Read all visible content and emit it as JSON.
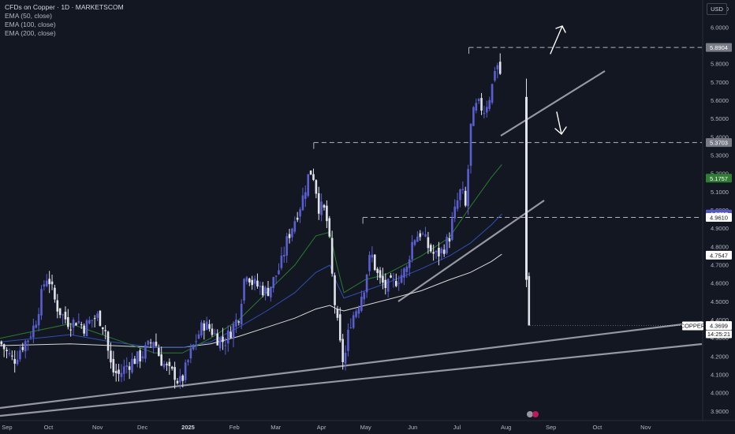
{
  "legend": {
    "title": "CFDs on Copper · 1D · MARKETSCOM",
    "indicators": [
      "EMA (50, close)",
      "EMA (100, close)",
      "EMA (200, close)"
    ]
  },
  "currency": "USD",
  "chart_data": {
    "type": "candlestick",
    "title": "CFDs on Copper · 1D · MARKETSCOM",
    "ylim": [
      3.85,
      6.15
    ],
    "y_ticks": [
      "6.1000",
      "6.0000",
      "5.9000",
      "5.8000",
      "5.7000",
      "5.6000",
      "5.5000",
      "5.4000",
      "5.3000",
      "5.2000",
      "5.1000",
      "5.0000",
      "4.9000",
      "4.8000",
      "4.7000",
      "4.6000",
      "4.5000",
      "4.4000",
      "4.3000",
      "4.2000",
      "4.1000",
      "4.0000",
      "3.9000"
    ],
    "x_labels": [
      {
        "label": "Sep",
        "bold": false,
        "pos": 0.01
      },
      {
        "label": "Oct",
        "bold": false,
        "pos": 0.069
      },
      {
        "label": "Nov",
        "bold": false,
        "pos": 0.139
      },
      {
        "label": "Dec",
        "bold": false,
        "pos": 0.203
      },
      {
        "label": "2025",
        "bold": true,
        "pos": 0.268
      },
      {
        "label": "Feb",
        "bold": false,
        "pos": 0.334
      },
      {
        "label": "Mar",
        "bold": false,
        "pos": 0.393
      },
      {
        "label": "Apr",
        "bold": false,
        "pos": 0.458
      },
      {
        "label": "May",
        "bold": false,
        "pos": 0.521
      },
      {
        "label": "Jun",
        "bold": false,
        "pos": 0.588
      },
      {
        "label": "Jul",
        "bold": false,
        "pos": 0.651
      },
      {
        "label": "Aug",
        "bold": false,
        "pos": 0.721
      },
      {
        "label": "Sep",
        "bold": false,
        "pos": 0.785
      },
      {
        "label": "Oct",
        "bold": false,
        "pos": 0.851
      },
      {
        "label": "Nov",
        "bold": false,
        "pos": 0.92
      }
    ],
    "close_path": [
      [
        0.0,
        4.28
      ],
      [
        0.01,
        4.22
      ],
      [
        0.02,
        4.18
      ],
      [
        0.03,
        4.25
      ],
      [
        0.04,
        4.3
      ],
      [
        0.05,
        4.38
      ],
      [
        0.06,
        4.55
      ],
      [
        0.065,
        4.64
      ],
      [
        0.07,
        4.62
      ],
      [
        0.075,
        4.55
      ],
      [
        0.08,
        4.48
      ],
      [
        0.09,
        4.42
      ],
      [
        0.1,
        4.38
      ],
      [
        0.11,
        4.4
      ],
      [
        0.12,
        4.36
      ],
      [
        0.13,
        4.4
      ],
      [
        0.14,
        4.42
      ],
      [
        0.15,
        4.35
      ],
      [
        0.155,
        4.2
      ],
      [
        0.16,
        4.12
      ],
      [
        0.17,
        4.1
      ],
      [
        0.18,
        4.15
      ],
      [
        0.19,
        4.18
      ],
      [
        0.2,
        4.2
      ],
      [
        0.21,
        4.25
      ],
      [
        0.22,
        4.3
      ],
      [
        0.225,
        4.22
      ],
      [
        0.23,
        4.18
      ],
      [
        0.24,
        4.12
      ],
      [
        0.25,
        4.1
      ],
      [
        0.255,
        4.05
      ],
      [
        0.26,
        4.08
      ],
      [
        0.27,
        4.2
      ],
      [
        0.28,
        4.3
      ],
      [
        0.29,
        4.38
      ],
      [
        0.3,
        4.35
      ],
      [
        0.31,
        4.3
      ],
      [
        0.32,
        4.28
      ],
      [
        0.33,
        4.35
      ],
      [
        0.34,
        4.42
      ],
      [
        0.345,
        4.55
      ],
      [
        0.35,
        4.68
      ],
      [
        0.36,
        4.6
      ],
      [
        0.37,
        4.58
      ],
      [
        0.38,
        4.55
      ],
      [
        0.39,
        4.62
      ],
      [
        0.4,
        4.7
      ],
      [
        0.41,
        4.85
      ],
      [
        0.42,
        4.95
      ],
      [
        0.43,
        5.05
      ],
      [
        0.44,
        5.2
      ],
      [
        0.445,
        5.22
      ],
      [
        0.45,
        5.12
      ],
      [
        0.455,
        5.0
      ],
      [
        0.46,
        5.02
      ],
      [
        0.465,
        4.96
      ],
      [
        0.47,
        4.8
      ],
      [
        0.475,
        4.55
      ],
      [
        0.48,
        4.4
      ],
      [
        0.485,
        4.25
      ],
      [
        0.49,
        4.15
      ],
      [
        0.495,
        4.3
      ],
      [
        0.5,
        4.4
      ],
      [
        0.51,
        4.48
      ],
      [
        0.52,
        4.6
      ],
      [
        0.525,
        4.72
      ],
      [
        0.53,
        4.75
      ],
      [
        0.535,
        4.68
      ],
      [
        0.54,
        4.62
      ],
      [
        0.55,
        4.58
      ],
      [
        0.56,
        4.6
      ],
      [
        0.57,
        4.64
      ],
      [
        0.58,
        4.68
      ],
      [
        0.585,
        4.8
      ],
      [
        0.59,
        4.85
      ],
      [
        0.6,
        4.88
      ],
      [
        0.61,
        4.8
      ],
      [
        0.62,
        4.75
      ],
      [
        0.63,
        4.78
      ],
      [
        0.64,
        4.85
      ],
      [
        0.645,
        4.95
      ],
      [
        0.65,
        5.02
      ],
      [
        0.655,
        5.1
      ],
      [
        0.66,
        5.08
      ],
      [
        0.665,
        4.98
      ],
      [
        0.668,
        5.35
      ],
      [
        0.672,
        5.5
      ],
      [
        0.68,
        5.58
      ],
      [
        0.69,
        5.55
      ],
      [
        0.7,
        5.65
      ],
      [
        0.705,
        5.78
      ],
      [
        0.71,
        5.8
      ],
      [
        0.715,
        5.7
      ]
    ],
    "ema50_path": [
      [
        0.0,
        4.3
      ],
      [
        0.1,
        4.38
      ],
      [
        0.16,
        4.3
      ],
      [
        0.22,
        4.22
      ],
      [
        0.26,
        4.22
      ],
      [
        0.3,
        4.3
      ],
      [
        0.34,
        4.4
      ],
      [
        0.38,
        4.55
      ],
      [
        0.42,
        4.7
      ],
      [
        0.45,
        4.86
      ],
      [
        0.47,
        4.88
      ],
      [
        0.48,
        4.7
      ],
      [
        0.49,
        4.55
      ],
      [
        0.52,
        4.62
      ],
      [
        0.55,
        4.65
      ],
      [
        0.6,
        4.75
      ],
      [
        0.64,
        4.85
      ],
      [
        0.67,
        5.02
      ],
      [
        0.7,
        5.18
      ],
      [
        0.715,
        5.25
      ]
    ],
    "ema100_path": [
      [
        0.0,
        4.28
      ],
      [
        0.1,
        4.32
      ],
      [
        0.16,
        4.28
      ],
      [
        0.22,
        4.25
      ],
      [
        0.26,
        4.25
      ],
      [
        0.3,
        4.28
      ],
      [
        0.34,
        4.36
      ],
      [
        0.38,
        4.45
      ],
      [
        0.42,
        4.55
      ],
      [
        0.45,
        4.66
      ],
      [
        0.47,
        4.7
      ],
      [
        0.48,
        4.6
      ],
      [
        0.49,
        4.52
      ],
      [
        0.52,
        4.56
      ],
      [
        0.55,
        4.6
      ],
      [
        0.6,
        4.68
      ],
      [
        0.64,
        4.75
      ],
      [
        0.67,
        4.82
      ],
      [
        0.7,
        4.92
      ],
      [
        0.715,
        4.98
      ]
    ],
    "ema200_path": [
      [
        0.0,
        4.26
      ],
      [
        0.1,
        4.27
      ],
      [
        0.16,
        4.26
      ],
      [
        0.22,
        4.25
      ],
      [
        0.26,
        4.25
      ],
      [
        0.3,
        4.27
      ],
      [
        0.34,
        4.31
      ],
      [
        0.38,
        4.36
      ],
      [
        0.42,
        4.41
      ],
      [
        0.45,
        4.46
      ],
      [
        0.47,
        4.48
      ],
      [
        0.48,
        4.46
      ],
      [
        0.49,
        4.45
      ],
      [
        0.52,
        4.48
      ],
      [
        0.55,
        4.51
      ],
      [
        0.6,
        4.56
      ],
      [
        0.64,
        4.62
      ],
      [
        0.67,
        4.66
      ],
      [
        0.7,
        4.72
      ],
      [
        0.715,
        4.76
      ]
    ],
    "price_labels": [
      {
        "value": 5.8904,
        "text": "5.8904",
        "bg": "#787b86",
        "fg": "#ffffff"
      },
      {
        "value": 5.3703,
        "text": "5.3703",
        "bg": "#787b86",
        "fg": "#ffffff"
      },
      {
        "value": 5.1757,
        "text": "5.1757",
        "bg": "#2e7d32",
        "fg": "#ffffff"
      },
      {
        "value": 4.9797,
        "text": "4.9797",
        "bg": "#5456c8",
        "fg": "#ffffff"
      },
      {
        "value": 4.961,
        "text": "4.9610",
        "bg": "#ffffff",
        "fg": "#131722"
      },
      {
        "value": 4.7547,
        "text": "4.7547",
        "bg": "#ffffff",
        "fg": "#131722"
      },
      {
        "value": 4.3699,
        "text": "4.3699",
        "bg": "#ffffff",
        "fg": "#131722"
      }
    ],
    "current_symbol": "COPPER",
    "countdown": "14:25:21",
    "hlines": [
      {
        "value": 5.8904,
        "start": 0.668
      },
      {
        "value": 5.3703,
        "start": 0.447
      },
      {
        "value": 4.961,
        "start": 0.517
      }
    ],
    "colors": {
      "up": "#5b5ecf",
      "down": "#e0e3eb",
      "ema50": "#2a7a2e",
      "ema100": "#2e4fb5",
      "ema200": "#d8d8d8",
      "trend": "#9598a1"
    }
  }
}
